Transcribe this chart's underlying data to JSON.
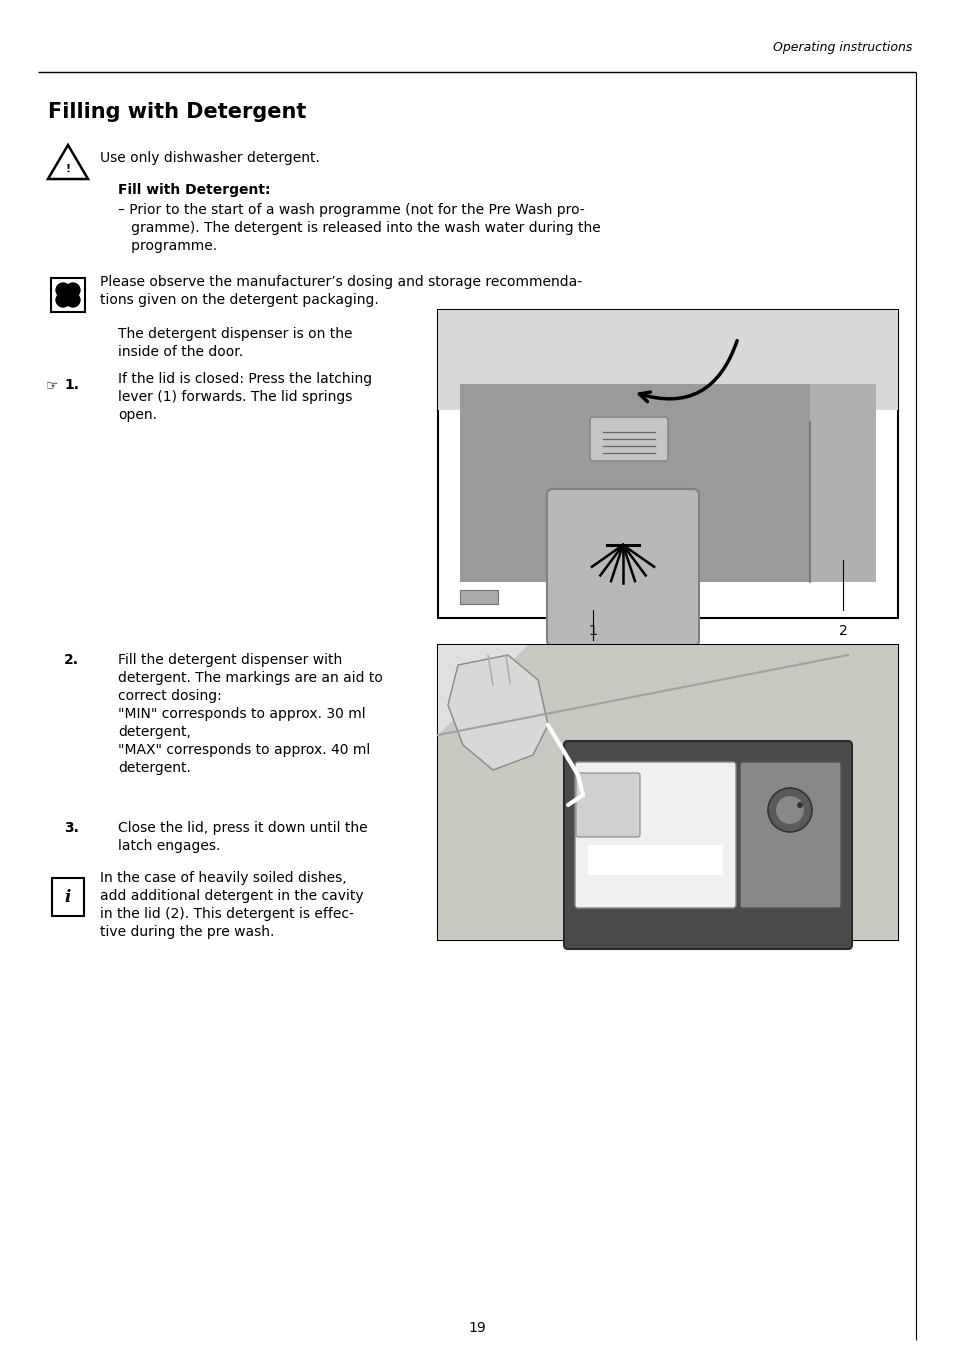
{
  "page_header": "Operating instructions",
  "title": "Filling with Detergent",
  "warning_text": "Use only dishwasher detergent.",
  "fill_bold": "Fill with Detergent:",
  "bullet_lines": [
    "– Prior to the start of a wash programme (not for the Pre Wash pro-",
    "   gramme). The detergent is released into the wash water during the",
    "   programme."
  ],
  "eco_lines": [
    "Please observe the manufacturer’s dosing and storage recommenda-",
    "tions given on the detergent packaging."
  ],
  "dispenser_lines": [
    "The detergent dispenser is on the",
    "inside of the door."
  ],
  "step1_lines": [
    "If the lid is closed: Press the latching",
    "lever (1) forwards. The lid springs",
    "open."
  ],
  "step2_lines": [
    "Fill the detergent dispenser with",
    "detergent. The markings are an aid to",
    "correct dosing:",
    "\"MIN\" corresponds to approx. 30 ml",
    "detergent,",
    "\"MAX\" corresponds to approx. 40 ml",
    "detergent."
  ],
  "step3_lines": [
    "Close the lid, press it down until the",
    "latch engages."
  ],
  "info_lines": [
    "In the case of heavily soiled dishes,",
    "add additional detergent in the cavity",
    "in the lid (2). This detergent is effec-",
    "tive during the pre wash."
  ],
  "page_number": "19",
  "bg_color": "#ffffff",
  "text_color": "#000000"
}
